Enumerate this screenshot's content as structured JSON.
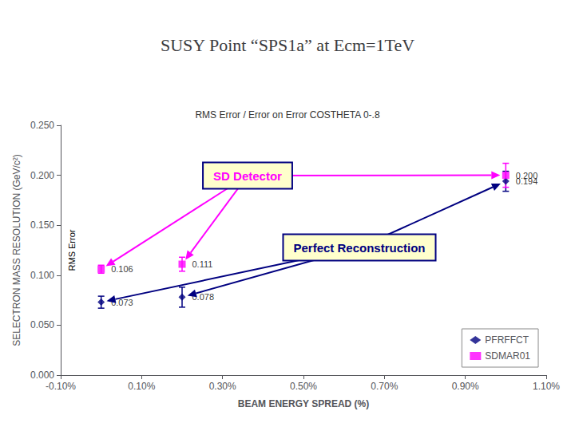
{
  "chart_data": {
    "type": "scatter",
    "title": "SUSY Point “SPS1a” at Ecm=1TeV",
    "subtitle": "RMS Error / Error on Error COSTHETA 0-.8",
    "xlabel": "BEAM ENERGY SPREAD (%)",
    "ylabel": "SELECTRON MASS RESOLUTION (GeV/c²)",
    "xlim": [
      -0.1,
      1.1
    ],
    "ylim": [
      0.0,
      0.25
    ],
    "xticks": [
      {
        "value": -0.1,
        "label": "-0.10%"
      },
      {
        "value": 0.1,
        "label": "0.10%"
      },
      {
        "value": 0.3,
        "label": "0.30%"
      },
      {
        "value": 0.5,
        "label": "0.50%"
      },
      {
        "value": 0.7,
        "label": "0.70%"
      },
      {
        "value": 0.9,
        "label": "0.90%"
      },
      {
        "value": 1.1,
        "label": "1.10%"
      }
    ],
    "yticks": [
      {
        "value": 0.0,
        "label": "0.000"
      },
      {
        "value": 0.05,
        "label": "0.050"
      },
      {
        "value": 0.1,
        "label": "0.100"
      },
      {
        "value": 0.15,
        "label": "0.150"
      },
      {
        "value": 0.2,
        "label": "0.200"
      },
      {
        "value": 0.25,
        "label": "0.250"
      }
    ],
    "grid": false,
    "legend": "lower right",
    "data_labels": true,
    "x": [
      0.0,
      0.2,
      1.0
    ],
    "series": [
      {
        "name": "PFRFFCT",
        "color": "#000080",
        "marker": "diamond",
        "values": [
          0.073,
          0.078,
          0.194
        ],
        "yerr": [
          0.006,
          0.01,
          0.01
        ],
        "value_labels": [
          "0.073",
          "0.078",
          "0.194"
        ]
      },
      {
        "name": "SDMAR01",
        "color": "#ff00ff",
        "marker": "square",
        "values": [
          0.106,
          0.111,
          0.2
        ],
        "yerr": [
          0.004,
          0.007,
          0.012
        ],
        "value_labels": [
          "0.106",
          "0.111",
          "0.200"
        ]
      }
    ],
    "annotations": [
      {
        "text": "RMS Error"
      },
      {
        "text": "SD Detector",
        "color": "#ff00ff",
        "series": "SDMAR01"
      },
      {
        "text": "Perfect Reconstruction",
        "color": "#000080",
        "series": "PFRFFCT"
      }
    ]
  }
}
